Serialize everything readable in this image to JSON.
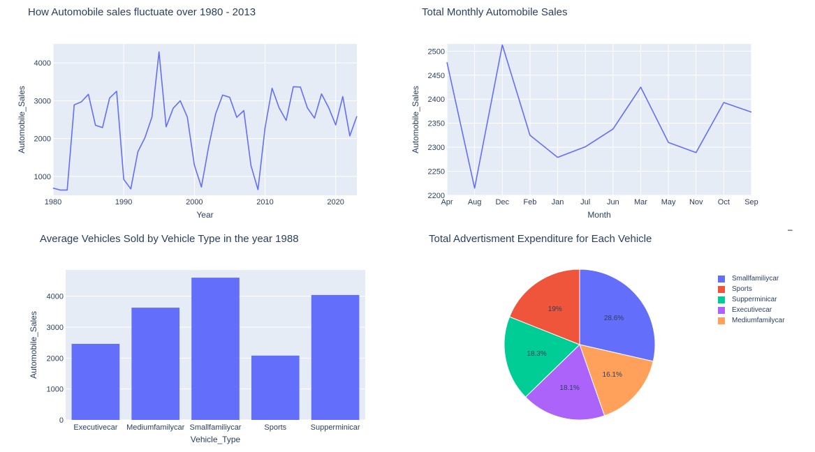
{
  "chart_data": [
    {
      "type": "line",
      "title": "How Automobile sales fluctuate over 1980 - 2013",
      "xlabel": "Year",
      "ylabel": "Automobile_Sales",
      "xlim": [
        1980,
        2023
      ],
      "ylim": [
        500,
        4500
      ],
      "xticks": [
        1980,
        1990,
        2000,
        2010,
        2020
      ],
      "yticks": [
        1000,
        2000,
        3000,
        4000
      ],
      "grid": true,
      "color": "#636efa",
      "x": [
        1980,
        1981,
        1982,
        1983,
        1984,
        1985,
        1986,
        1987,
        1988,
        1989,
        1990,
        1991,
        1992,
        1993,
        1994,
        1995,
        1996,
        1997,
        1998,
        1999,
        2000,
        2001,
        2002,
        2003,
        2004,
        2005,
        2006,
        2007,
        2008,
        2009,
        2010,
        2011,
        2012,
        2013,
        2014,
        2015,
        2016,
        2017,
        2018,
        2019,
        2020,
        2021,
        2022,
        2023
      ],
      "y": [
        690,
        640,
        640,
        2890,
        2970,
        3170,
        2350,
        2290,
        3070,
        3250,
        920,
        670,
        1650,
        2020,
        2570,
        4290,
        2310,
        2800,
        3000,
        2570,
        1300,
        720,
        1770,
        2650,
        3150,
        3090,
        2560,
        2740,
        1290,
        650,
        2280,
        3330,
        2810,
        2480,
        3370,
        3360,
        2810,
        2540,
        3180,
        2820,
        2360,
        3110,
        2070,
        2590
      ]
    },
    {
      "type": "line",
      "title": "Total Monthly Automobile Sales",
      "xlabel": "Month",
      "ylabel": "Automobile_Sales",
      "ylim": [
        2200,
        2515
      ],
      "yticks": [
        2200,
        2250,
        2300,
        2350,
        2400,
        2450,
        2500
      ],
      "grid": true,
      "color": "#636efa",
      "categories": [
        "Apr",
        "Aug",
        "Dec",
        "Feb",
        "Jan",
        "Jul",
        "Jun",
        "Mar",
        "May",
        "Nov",
        "Oct",
        "Sep"
      ],
      "values": [
        2477,
        2215,
        2513,
        2325,
        2279,
        2301,
        2338,
        2425,
        2310,
        2289,
        2393,
        2373
      ]
    },
    {
      "type": "bar",
      "title": "Average Vehicles Sold by Vehicle Type in the year 1988",
      "xlabel": "Vehicle_Type",
      "ylabel": "Automobile_Sales",
      "ylim": [
        0,
        4850
      ],
      "yticks": [
        0,
        1000,
        2000,
        3000,
        4000
      ],
      "grid": true,
      "color": "#636efa",
      "categories": [
        "Executivecar",
        "Mediumfamilycar",
        "Smallfamiliycar",
        "Sports",
        "Supperminicar"
      ],
      "values": [
        2460,
        3630,
        4600,
        2080,
        4040
      ]
    },
    {
      "type": "pie",
      "title": "Total Advertisment Expenditure for Each Vehicle",
      "legend_position": "top-right",
      "slices": [
        {
          "label": "Smallfamiliycar",
          "value": 28.6,
          "text": "28.6%",
          "color": "#636efa"
        },
        {
          "label": "Mediumfamilycar",
          "value": 16.1,
          "text": "16.1%",
          "color": "#ffa15a"
        },
        {
          "label": "Executivecar",
          "value": 18.1,
          "text": "18.1%",
          "color": "#ab63fa"
        },
        {
          "label": "Supperminicar",
          "value": 18.3,
          "text": "18.3%",
          "color": "#00cc96"
        },
        {
          "label": "Sports",
          "value": 19.0,
          "text": "19%",
          "color": "#ef553b"
        }
      ],
      "legend": [
        {
          "label": "Smallfamiliycar",
          "color": "#636efa"
        },
        {
          "label": "Sports",
          "color": "#ef553b"
        },
        {
          "label": "Supperminicar",
          "color": "#00cc96"
        },
        {
          "label": "Executivecar",
          "color": "#ab63fa"
        },
        {
          "label": "Mediumfamilycar",
          "color": "#ffa15a"
        }
      ]
    }
  ],
  "corner_mark": "–"
}
